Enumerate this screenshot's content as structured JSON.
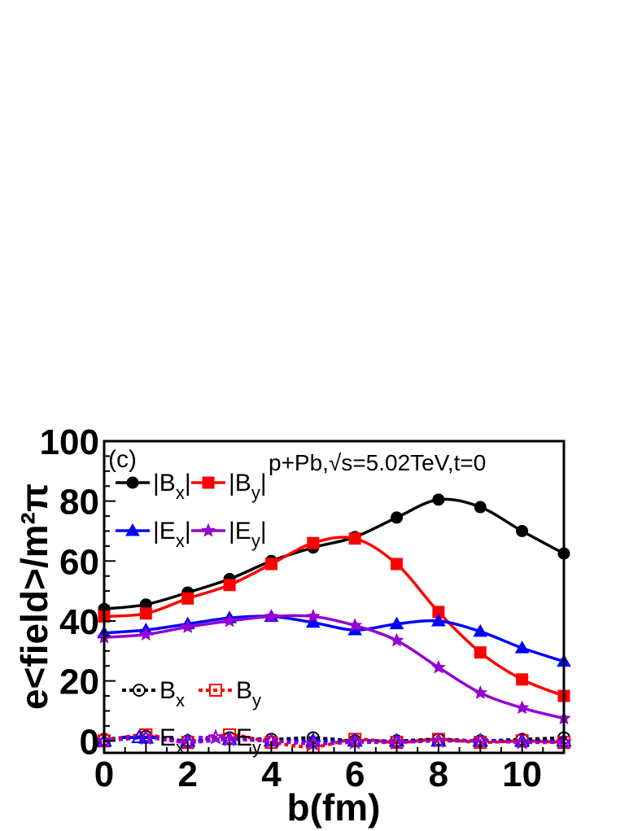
{
  "chart_data": {
    "type": "line",
    "panel_label": "(c)",
    "annotation": "p+Pb,√s=5.02TeV,t=0",
    "xlabel": "b(fm)",
    "ylabel": "e<field>/m²π",
    "xlim": [
      0,
      11
    ],
    "ylim": [
      -4,
      100
    ],
    "x_ticks": [
      0,
      2,
      4,
      6,
      8,
      10
    ],
    "y_ticks": [
      0,
      20,
      40,
      60,
      80,
      100
    ],
    "x": [
      0,
      1,
      2,
      3,
      4,
      5,
      6,
      7,
      8,
      9,
      10,
      11
    ],
    "series": [
      {
        "name": "|Bx|",
        "label_main": "|B",
        "label_sub": "x",
        "label_end": "|",
        "color": "#000000",
        "marker": "circle",
        "filled": true,
        "dash": false,
        "values": [
          44,
          45.5,
          49.5,
          54,
          60,
          64.5,
          68,
          74.5,
          80.5,
          78,
          70,
          62.5
        ]
      },
      {
        "name": "|By|",
        "label_main": "|B",
        "label_sub": "y",
        "label_end": "|",
        "color": "#ff0000",
        "marker": "square",
        "filled": true,
        "dash": false,
        "values": [
          41.5,
          42.5,
          47.5,
          52,
          59,
          66,
          67.5,
          59,
          43,
          29.5,
          20.5,
          15
        ]
      },
      {
        "name": "|Ex|",
        "label_main": "|E",
        "label_sub": "x",
        "label_end": "|",
        "color": "#0000ff",
        "marker": "triangle",
        "filled": true,
        "dash": false,
        "values": [
          36,
          37,
          39,
          41,
          41.5,
          39.5,
          37,
          39,
          40,
          36.5,
          31,
          26.5
        ]
      },
      {
        "name": "|Ey|",
        "label_main": "|E",
        "label_sub": "y",
        "label_end": "|",
        "color": "#9400d3",
        "marker": "star",
        "filled": true,
        "dash": false,
        "values": [
          34.5,
          35.5,
          38,
          40,
          41.5,
          41.5,
          38.5,
          33.5,
          24.5,
          16,
          11,
          7.5
        ]
      },
      {
        "name": "Bx",
        "label_main": "B",
        "label_sub": "x",
        "label_end": "",
        "color": "#000000",
        "marker": "circle",
        "filled": false,
        "dash": true,
        "values": [
          0.5,
          1.5,
          0,
          1,
          0.5,
          1,
          0,
          0,
          0.5,
          0,
          0.5,
          1
        ]
      },
      {
        "name": "By",
        "label_main": "B",
        "label_sub": "y",
        "label_end": "",
        "color": "#ff0000",
        "marker": "square",
        "filled": false,
        "dash": true,
        "values": [
          0,
          2,
          -0.5,
          2,
          -0.5,
          -2,
          0.5,
          -0.5,
          0.5,
          -0.5,
          0,
          -0.5
        ]
      },
      {
        "name": "Ex",
        "label_main": "E",
        "label_sub": "x",
        "label_end": "",
        "color": "#0000ff",
        "marker": "triangle",
        "filled": false,
        "dash": true,
        "values": [
          0,
          1,
          0,
          0.5,
          0,
          0,
          0,
          0,
          0,
          0,
          0,
          0
        ]
      },
      {
        "name": "Ey",
        "label_main": "E",
        "label_sub": "y",
        "label_end": "",
        "color": "#9400d3",
        "marker": "star",
        "filled": false,
        "dash": true,
        "values": [
          0,
          1,
          -0.5,
          0.5,
          0,
          -1,
          -0.5,
          -0.5,
          0,
          0,
          -0.5,
          -0.5
        ]
      }
    ]
  }
}
